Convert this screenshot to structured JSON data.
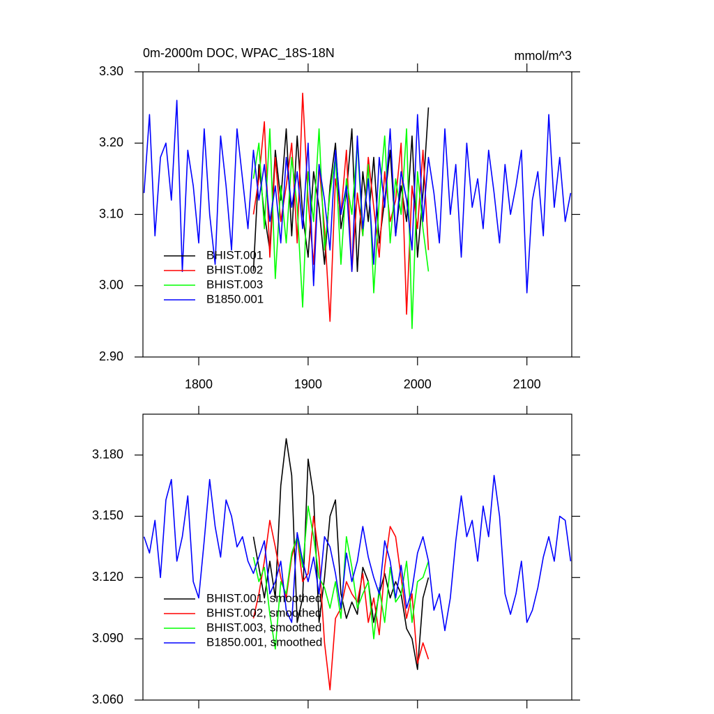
{
  "chart_data": [
    {
      "type": "line",
      "title": "0m-2000m DOC, WPAC_18S-18N",
      "units": "mmol/m^3",
      "xlim": [
        1749,
        2141
      ],
      "ylim": [
        2.9,
        3.3
      ],
      "xticks": [
        1800,
        1900,
        2000,
        2100
      ],
      "show_xtick_labels": true,
      "yticks": [
        {
          "value": 2.9,
          "label": "2.90"
        },
        {
          "value": 3.0,
          "label": "3.00"
        },
        {
          "value": 3.1,
          "label": "3.10"
        },
        {
          "value": 3.2,
          "label": "3.20"
        },
        {
          "value": 3.3,
          "label": "3.30"
        }
      ],
      "legend": "lower left",
      "series": [
        {
          "name": "BHIST.001",
          "color": "#000000",
          "x": [
            1850,
            1855,
            1860,
            1865,
            1870,
            1875,
            1880,
            1885,
            1890,
            1895,
            1900,
            1905,
            1910,
            1915,
            1920,
            1925,
            1930,
            1935,
            1940,
            1945,
            1950,
            1955,
            1960,
            1965,
            1970,
            1975,
            1980,
            1985,
            1990,
            1995,
            2000,
            2005,
            2010
          ],
          "values": [
            3.02,
            3.17,
            3.1,
            3.05,
            3.19,
            3.12,
            3.22,
            3.07,
            3.21,
            3.1,
            3.04,
            3.16,
            3.11,
            3.03,
            3.14,
            3.2,
            3.08,
            3.13,
            3.22,
            3.02,
            3.16,
            3.09,
            3.18,
            3.06,
            3.12,
            3.19,
            3.07,
            3.14,
            3.09,
            3.21,
            3.04,
            3.13,
            3.25
          ]
        },
        {
          "name": "BHIST.002",
          "color": "#ff0000",
          "x": [
            1850,
            1855,
            1860,
            1865,
            1870,
            1875,
            1880,
            1885,
            1890,
            1895,
            1900,
            1905,
            1910,
            1915,
            1920,
            1925,
            1930,
            1935,
            1940,
            1945,
            1950,
            1955,
            1960,
            1965,
            1970,
            1975,
            1980,
            1985,
            1990,
            1995,
            2000,
            2005,
            2010
          ],
          "values": [
            3.1,
            3.15,
            3.23,
            3.04,
            3.18,
            3.09,
            3.14,
            3.2,
            3.06,
            3.27,
            3.12,
            3.03,
            3.17,
            3.08,
            2.95,
            3.15,
            3.1,
            3.19,
            3.02,
            3.13,
            3.07,
            3.18,
            3.11,
            3.04,
            3.16,
            3.09,
            3.12,
            3.2,
            2.96,
            3.14,
            3.08,
            3.19,
            3.05
          ]
        },
        {
          "name": "BHIST.003",
          "color": "#00ff00",
          "x": [
            1850,
            1855,
            1860,
            1865,
            1870,
            1875,
            1880,
            1885,
            1890,
            1895,
            1900,
            1905,
            1910,
            1915,
            1920,
            1925,
            1930,
            1935,
            1940,
            1945,
            1950,
            1955,
            1960,
            1965,
            1970,
            1975,
            1980,
            1985,
            1990,
            1995,
            2000,
            2005,
            2010
          ],
          "values": [
            3.15,
            3.2,
            3.08,
            3.22,
            3.01,
            3.14,
            3.06,
            3.18,
            3.11,
            2.97,
            3.16,
            3.09,
            3.22,
            3.05,
            3.13,
            3.18,
            3.03,
            3.15,
            3.1,
            3.2,
            3.07,
            3.17,
            2.99,
            3.12,
            3.21,
            3.06,
            3.15,
            3.1,
            3.22,
            2.94,
            3.16,
            3.08,
            3.02
          ]
        },
        {
          "name": "B1850.001",
          "color": "#0000ff",
          "x": [
            1750,
            1755,
            1760,
            1765,
            1770,
            1775,
            1780,
            1785,
            1790,
            1795,
            1800,
            1805,
            1810,
            1815,
            1820,
            1825,
            1830,
            1835,
            1840,
            1845,
            1850,
            1855,
            1860,
            1865,
            1870,
            1875,
            1880,
            1885,
            1890,
            1895,
            1900,
            1905,
            1910,
            1915,
            1920,
            1925,
            1930,
            1935,
            1940,
            1945,
            1950,
            1955,
            1960,
            1965,
            1970,
            1975,
            1980,
            1985,
            1990,
            1995,
            2000,
            2005,
            2010,
            2015,
            2020,
            2025,
            2030,
            2035,
            2040,
            2045,
            2050,
            2055,
            2060,
            2065,
            2070,
            2075,
            2080,
            2085,
            2090,
            2095,
            2100,
            2105,
            2110,
            2115,
            2120,
            2125,
            2130,
            2135,
            2140
          ],
          "values": [
            3.13,
            3.24,
            3.07,
            3.18,
            3.2,
            3.12,
            3.26,
            3.02,
            3.19,
            3.14,
            3.06,
            3.22,
            3.1,
            3.03,
            3.21,
            3.14,
            3.05,
            3.22,
            3.15,
            3.08,
            3.19,
            3.12,
            3.17,
            3.09,
            3.14,
            3.06,
            3.18,
            3.11,
            3.16,
            3.08,
            3.2,
            3.0,
            3.17,
            3.12,
            3.05,
            3.19,
            3.1,
            3.14,
            3.02,
            3.21,
            3.08,
            3.15,
            3.03,
            3.18,
            3.11,
            3.22,
            3.07,
            3.16,
            3.12,
            3.05,
            3.24,
            3.09,
            3.18,
            3.13,
            3.06,
            3.22,
            3.1,
            3.17,
            3.04,
            3.2,
            3.11,
            3.15,
            3.08,
            3.19,
            3.13,
            3.06,
            3.17,
            3.1,
            3.14,
            3.19,
            2.99,
            3.12,
            3.16,
            3.07,
            3.24,
            3.11,
            3.18,
            3.09,
            3.13
          ]
        }
      ]
    },
    {
      "type": "line",
      "xlim": [
        1749,
        2141
      ],
      "ylim": [
        3.06,
        3.2
      ],
      "xticks": [
        1800,
        1900,
        2000,
        2100
      ],
      "show_xtick_labels": false,
      "yticks": [
        {
          "value": 3.06,
          "label": "3.060"
        },
        {
          "value": 3.09,
          "label": "3.090"
        },
        {
          "value": 3.12,
          "label": "3.120"
        },
        {
          "value": 3.15,
          "label": "3.150"
        },
        {
          "value": 3.18,
          "label": "3.180"
        }
      ],
      "legend": "lower left",
      "series": [
        {
          "name": "BHIST.001, smoothed",
          "color": "#000000",
          "x": [
            1850,
            1855,
            1860,
            1865,
            1870,
            1875,
            1880,
            1885,
            1890,
            1895,
            1900,
            1905,
            1910,
            1915,
            1920,
            1925,
            1930,
            1935,
            1940,
            1945,
            1950,
            1955,
            1960,
            1965,
            1970,
            1975,
            1980,
            1985,
            1990,
            1995,
            2000,
            2005,
            2010
          ],
          "values": [
            3.14,
            3.125,
            3.11,
            3.128,
            3.11,
            3.165,
            3.188,
            3.17,
            3.098,
            3.11,
            3.178,
            3.16,
            3.098,
            3.12,
            3.15,
            3.158,
            3.112,
            3.1,
            3.108,
            3.102,
            3.125,
            3.118,
            3.098,
            3.112,
            3.122,
            3.11,
            3.118,
            3.112,
            3.095,
            3.09,
            3.075,
            3.11,
            3.12
          ]
        },
        {
          "name": "BHIST.002, smoothed",
          "color": "#ff0000",
          "x": [
            1850,
            1855,
            1860,
            1865,
            1870,
            1875,
            1880,
            1885,
            1890,
            1895,
            1900,
            1905,
            1910,
            1915,
            1920,
            1925,
            1930,
            1935,
            1940,
            1945,
            1950,
            1955,
            1960,
            1965,
            1970,
            1975,
            1980,
            1985,
            1990,
            1995,
            2000,
            2005,
            2010
          ],
          "values": [
            3.1,
            3.112,
            3.128,
            3.148,
            3.135,
            3.12,
            3.11,
            3.13,
            3.14,
            3.118,
            3.122,
            3.15,
            3.13,
            3.088,
            3.065,
            3.1,
            3.105,
            3.118,
            3.112,
            3.108,
            3.122,
            3.098,
            3.11,
            3.092,
            3.125,
            3.145,
            3.14,
            3.12,
            3.1,
            3.112,
            3.078,
            3.088,
            3.08
          ]
        },
        {
          "name": "BHIST.003, smoothed",
          "color": "#00ff00",
          "x": [
            1850,
            1855,
            1860,
            1865,
            1870,
            1875,
            1880,
            1885,
            1890,
            1895,
            1900,
            1905,
            1910,
            1915,
            1920,
            1925,
            1930,
            1935,
            1940,
            1945,
            1950,
            1955,
            1960,
            1965,
            1970,
            1975,
            1980,
            1985,
            1990,
            1995,
            2000,
            2005,
            2010
          ],
          "values": [
            3.13,
            3.118,
            3.125,
            3.102,
            3.085,
            3.118,
            3.112,
            3.132,
            3.14,
            3.125,
            3.155,
            3.14,
            3.12,
            3.115,
            3.105,
            3.118,
            3.1,
            3.14,
            3.125,
            3.105,
            3.112,
            3.118,
            3.09,
            3.115,
            3.098,
            3.125,
            3.108,
            3.112,
            3.128,
            3.098,
            3.118,
            3.12,
            3.128
          ]
        },
        {
          "name": "B1850.001, smoothed",
          "color": "#0000ff",
          "x": [
            1750,
            1755,
            1760,
            1765,
            1770,
            1775,
            1780,
            1785,
            1790,
            1795,
            1800,
            1805,
            1810,
            1815,
            1820,
            1825,
            1830,
            1835,
            1840,
            1845,
            1850,
            1855,
            1860,
            1865,
            1870,
            1875,
            1880,
            1885,
            1890,
            1895,
            1900,
            1905,
            1910,
            1915,
            1920,
            1925,
            1930,
            1935,
            1940,
            1945,
            1950,
            1955,
            1960,
            1965,
            1970,
            1975,
            1980,
            1985,
            1990,
            1995,
            2000,
            2005,
            2010,
            2015,
            2020,
            2025,
            2030,
            2035,
            2040,
            2045,
            2050,
            2055,
            2060,
            2065,
            2070,
            2075,
            2080,
            2085,
            2090,
            2095,
            2100,
            2105,
            2110,
            2115,
            2120,
            2125,
            2130,
            2135,
            2140
          ],
          "values": [
            3.14,
            3.132,
            3.148,
            3.12,
            3.158,
            3.168,
            3.128,
            3.14,
            3.16,
            3.118,
            3.11,
            3.138,
            3.168,
            3.145,
            3.13,
            3.158,
            3.15,
            3.135,
            3.14,
            3.128,
            3.122,
            3.13,
            3.138,
            3.112,
            3.118,
            3.128,
            3.104,
            3.098,
            3.142,
            3.128,
            3.118,
            3.13,
            3.112,
            3.14,
            3.135,
            3.122,
            3.105,
            3.132,
            3.118,
            3.128,
            3.145,
            3.13,
            3.12,
            3.112,
            3.138,
            3.128,
            3.11,
            3.126,
            3.105,
            3.114,
            3.132,
            3.14,
            3.128,
            3.104,
            3.112,
            3.094,
            3.11,
            3.138,
            3.16,
            3.14,
            3.148,
            3.128,
            3.155,
            3.14,
            3.17,
            3.15,
            3.112,
            3.102,
            3.112,
            3.128,
            3.098,
            3.104,
            3.115,
            3.13,
            3.14,
            3.128,
            3.15,
            3.148,
            3.128
          ]
        }
      ]
    }
  ]
}
